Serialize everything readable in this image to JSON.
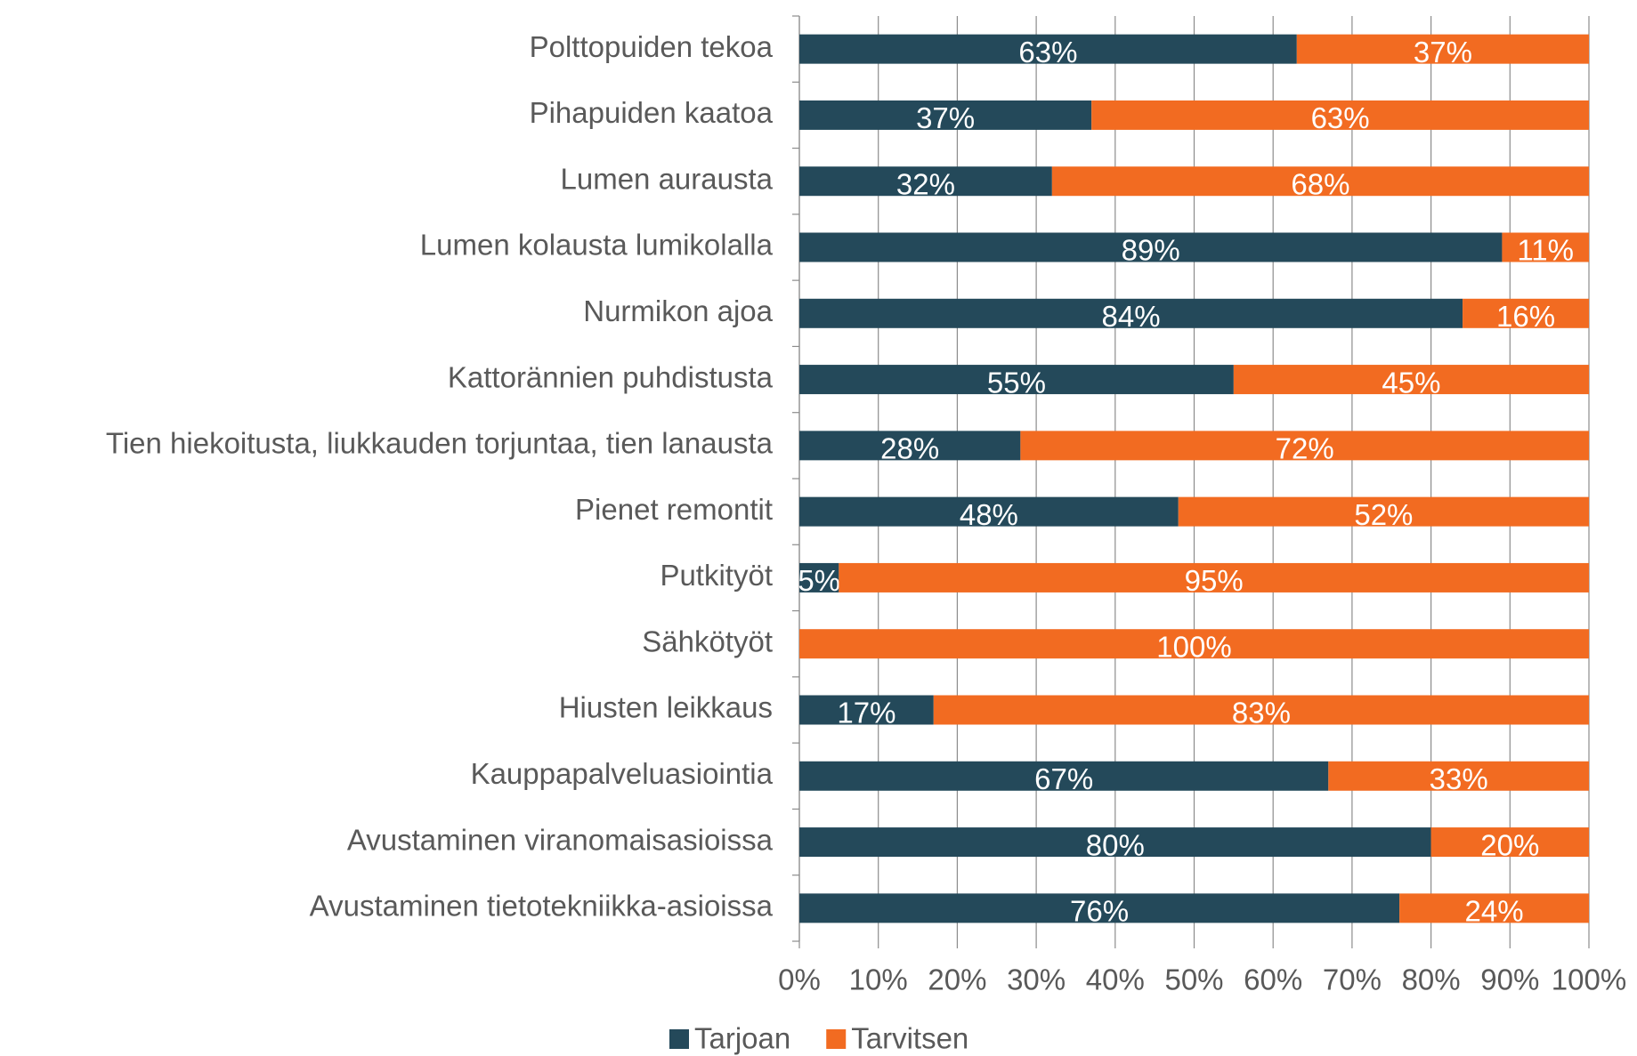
{
  "chart_data": {
    "type": "stacked-barh",
    "categories": [
      "Polttopuiden tekoa",
      "Pihapuiden kaatoa",
      "Lumen aurausta",
      "Lumen kolausta lumikolalla",
      "Nurmikon ajoa",
      "Kattoränniеn puhdistusta",
      "Tien hiekoitusta, liukkauden torjuntaa, tien lanausta",
      "Pienet remontit",
      "Putkityöt",
      "Sähkötyöt",
      "Hiusten leikkaus",
      "Kauppapalveluasiointia",
      "Avustaminen viranomaisasioissa",
      "Avustaminen tietotekniikka-asioissa"
    ],
    "series": [
      {
        "name": "Tarjoan",
        "color": "#24495a",
        "values": [
          63,
          37,
          32,
          89,
          84,
          55,
          28,
          48,
          5,
          0,
          17,
          67,
          80,
          76
        ],
        "value_labels": [
          "63%",
          "37%",
          "32%",
          "89%",
          "84%",
          "55%",
          "28%",
          "48%",
          "5%",
          null,
          "17%",
          "67%",
          "80%",
          "76%"
        ]
      },
      {
        "name": "Tarvitsen",
        "color": "#f26b21",
        "values": [
          37,
          63,
          68,
          11,
          16,
          45,
          72,
          52,
          95,
          100,
          83,
          33,
          20,
          24
        ],
        "value_labels": [
          "37%",
          "63%",
          "68%",
          "11%",
          "16%",
          "45%",
          "72%",
          "52%",
          "95%",
          "100%",
          "83%",
          "33%",
          "20%",
          "24%"
        ]
      }
    ],
    "xlim": [
      0,
      100
    ],
    "xticks": [
      {
        "value": 0,
        "label": "0%"
      },
      {
        "value": 10,
        "label": "10%"
      },
      {
        "value": 20,
        "label": "20%"
      },
      {
        "value": 30,
        "label": "30%"
      },
      {
        "value": 40,
        "label": "40%"
      },
      {
        "value": 50,
        "label": "50%"
      },
      {
        "value": 60,
        "label": "60%"
      },
      {
        "value": 70,
        "label": "70%"
      },
      {
        "value": 80,
        "label": "80%"
      },
      {
        "value": 90,
        "label": "90%"
      },
      {
        "value": 100,
        "label": "100%"
      }
    ],
    "grid": true,
    "legend": "bottom"
  }
}
